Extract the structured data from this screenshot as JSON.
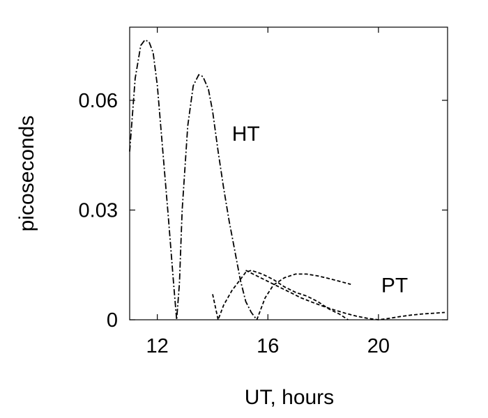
{
  "chart_data": {
    "type": "line",
    "xlabel": "UT, hours",
    "ylabel": "picoseconds",
    "xlim": [
      11.0,
      22.5
    ],
    "ylim": [
      0,
      0.08
    ],
    "x_ticks": [
      12,
      16,
      20
    ],
    "x_tick_labels": [
      "12",
      "16",
      "20"
    ],
    "y_ticks": [
      0,
      0.03,
      0.06
    ],
    "y_tick_labels": [
      "0",
      "0.03",
      "0.06"
    ],
    "grid": false,
    "series": [
      {
        "name": "HT",
        "style": "dash-dot",
        "x": [
          11.0,
          11.2,
          11.4,
          11.55,
          11.7,
          11.85,
          12.0,
          12.2,
          12.4,
          12.6,
          12.7,
          12.8,
          12.9,
          13.1,
          13.3,
          13.5,
          13.65,
          13.85,
          14.0,
          14.2,
          14.4,
          14.6,
          14.8,
          15.0,
          15.2,
          15.4,
          15.6
        ],
        "y": [
          0.046,
          0.066,
          0.075,
          0.0765,
          0.076,
          0.073,
          0.064,
          0.046,
          0.028,
          0.009,
          0.0,
          0.01,
          0.03,
          0.053,
          0.064,
          0.067,
          0.0665,
          0.063,
          0.057,
          0.046,
          0.036,
          0.027,
          0.019,
          0.011,
          0.005,
          0.002,
          0.0
        ]
      },
      {
        "name": "PT",
        "style": "dashed",
        "x": [
          14.0,
          14.2,
          14.4,
          14.7,
          15.0,
          15.2,
          15.4,
          15.6,
          15.8,
          16.2,
          16.6,
          17.0,
          17.4,
          17.8,
          18.2,
          18.6,
          18.9
        ],
        "y": [
          0.007,
          0.0,
          0.004,
          0.008,
          0.011,
          0.013,
          0.0135,
          0.013,
          0.0125,
          0.011,
          0.009,
          0.0075,
          0.0065,
          0.005,
          0.003,
          0.0015,
          0.0
        ]
      },
      {
        "name": "",
        "style": "dashed",
        "x": [
          15.6,
          15.9,
          16.2,
          16.6,
          17.0,
          17.4,
          17.8,
          18.2,
          18.6,
          19.0
        ],
        "y": [
          0.0,
          0.006,
          0.0095,
          0.0115,
          0.0125,
          0.0125,
          0.012,
          0.0113,
          0.0105,
          0.0097
        ]
      },
      {
        "name": "",
        "style": "dashed",
        "x": [
          15.2,
          15.6,
          16.0,
          16.4,
          16.8,
          17.2,
          17.6,
          18.0,
          18.4,
          18.8,
          19.2,
          19.6,
          20.0,
          20.4,
          20.8,
          21.2,
          21.6,
          22.0,
          22.4
        ],
        "y": [
          0.0135,
          0.012,
          0.0105,
          0.009,
          0.0075,
          0.006,
          0.0048,
          0.0037,
          0.0027,
          0.0018,
          0.001,
          0.0004,
          0.0,
          0.0004,
          0.0009,
          0.0013,
          0.0016,
          0.0018,
          0.002
        ]
      }
    ],
    "annotations": [
      {
        "text": "HT",
        "x": 14.7,
        "y": 0.049
      },
      {
        "text": "PT",
        "x": 20.1,
        "y": 0.0075
      }
    ]
  }
}
